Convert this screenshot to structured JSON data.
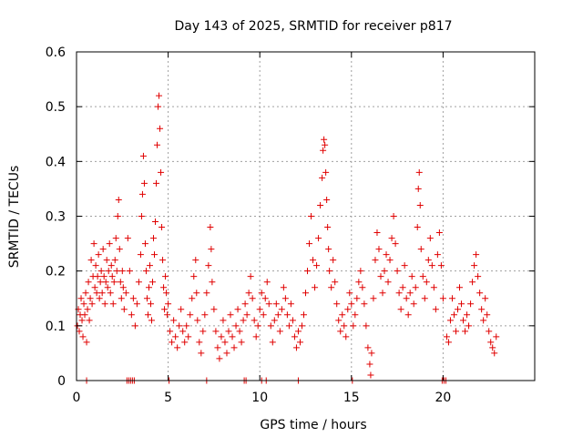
{
  "chart_data": {
    "type": "scatter",
    "title": "Day 143 of 2025, SRMTID for receiver p817",
    "xlabel": "GPS time / hours",
    "ylabel": "SRMTID / TECUs",
    "xlim": [
      0,
      25
    ],
    "ylim": [
      0,
      0.6
    ],
    "xticks": [
      0,
      5,
      10,
      15,
      20
    ],
    "xtick_labels": [
      "0",
      "5",
      "10",
      "15",
      "20"
    ],
    "yticks": [
      0,
      0.1,
      0.2,
      0.3,
      0.4,
      0.5,
      0.6
    ],
    "ytick_labels": [
      "0",
      "0.1",
      "0.2",
      "0.3",
      "0.4",
      "0.5",
      "0.6"
    ],
    "grid": true,
    "marker": "plus",
    "color": "#e00000",
    "series": [
      {
        "name": "SRMTID",
        "points": [
          [
            0.05,
            0.1
          ],
          [
            0.1,
            0.13
          ],
          [
            0.15,
            0.09
          ],
          [
            0.2,
            0.12
          ],
          [
            0.25,
            0.15
          ],
          [
            0.3,
            0.11
          ],
          [
            0.35,
            0.08
          ],
          [
            0.4,
            0.14
          ],
          [
            0.45,
            0.12
          ],
          [
            0.5,
            0.16
          ],
          [
            0.55,
            0.07
          ],
          [
            0.6,
            0.13
          ],
          [
            0.65,
            0.18
          ],
          [
            0.7,
            0.11
          ],
          [
            0.75,
            0.15
          ],
          [
            0.8,
            0.22
          ],
          [
            0.85,
            0.14
          ],
          [
            0.9,
            0.19
          ],
          [
            0.95,
            0.25
          ],
          [
            1.0,
            0.17
          ],
          [
            1.05,
            0.21
          ],
          [
            1.1,
            0.16
          ],
          [
            1.15,
            0.19
          ],
          [
            1.2,
            0.23
          ],
          [
            1.25,
            0.15
          ],
          [
            1.3,
            0.18
          ],
          [
            1.35,
            0.2
          ],
          [
            1.4,
            0.16
          ],
          [
            1.45,
            0.24
          ],
          [
            1.5,
            0.19
          ],
          [
            1.55,
            0.14
          ],
          [
            1.6,
            0.18
          ],
          [
            1.65,
            0.22
          ],
          [
            1.7,
            0.17
          ],
          [
            1.75,
            0.2
          ],
          [
            1.8,
            0.25
          ],
          [
            1.85,
            0.16
          ],
          [
            1.9,
            0.21
          ],
          [
            1.95,
            0.19
          ],
          [
            2.0,
            0.14
          ],
          [
            2.05,
            0.18
          ],
          [
            2.1,
            0.22
          ],
          [
            2.15,
            0.26
          ],
          [
            2.2,
            0.2
          ],
          [
            2.25,
            0.3
          ],
          [
            2.3,
            0.33
          ],
          [
            2.35,
            0.24
          ],
          [
            2.4,
            0.18
          ],
          [
            2.45,
            0.15
          ],
          [
            2.5,
            0.2
          ],
          [
            2.55,
            0.17
          ],
          [
            2.6,
            0.13
          ],
          [
            2.7,
            0.16
          ],
          [
            2.8,
            0.26
          ],
          [
            2.9,
            0.2
          ],
          [
            3.0,
            0.12
          ],
          [
            3.1,
            0.15
          ],
          [
            3.2,
            0.1
          ],
          [
            3.3,
            0.14
          ],
          [
            3.4,
            0.18
          ],
          [
            3.5,
            0.23
          ],
          [
            3.55,
            0.3
          ],
          [
            3.6,
            0.34
          ],
          [
            3.65,
            0.41
          ],
          [
            3.7,
            0.36
          ],
          [
            3.75,
            0.25
          ],
          [
            3.8,
            0.2
          ],
          [
            3.85,
            0.15
          ],
          [
            3.9,
            0.12
          ],
          [
            3.95,
            0.17
          ],
          [
            4.0,
            0.21
          ],
          [
            4.05,
            0.14
          ],
          [
            4.1,
            0.11
          ],
          [
            4.15,
            0.18
          ],
          [
            4.2,
            0.26
          ],
          [
            4.25,
            0.23
          ],
          [
            4.3,
            0.29
          ],
          [
            4.35,
            0.36
          ],
          [
            4.4,
            0.43
          ],
          [
            4.45,
            0.5
          ],
          [
            4.5,
            0.52
          ],
          [
            4.55,
            0.46
          ],
          [
            4.6,
            0.38
          ],
          [
            4.65,
            0.28
          ],
          [
            4.7,
            0.22
          ],
          [
            4.75,
            0.17
          ],
          [
            4.8,
            0.13
          ],
          [
            4.85,
            0.19
          ],
          [
            4.9,
            0.16
          ],
          [
            4.95,
            0.12
          ],
          [
            5.0,
            0.14
          ],
          [
            5.1,
            0.09
          ],
          [
            5.2,
            0.07
          ],
          [
            5.3,
            0.11
          ],
          [
            5.4,
            0.08
          ],
          [
            5.5,
            0.06
          ],
          [
            5.6,
            0.1
          ],
          [
            5.7,
            0.13
          ],
          [
            5.8,
            0.09
          ],
          [
            5.9,
            0.07
          ],
          [
            6.0,
            0.1
          ],
          [
            6.1,
            0.08
          ],
          [
            6.2,
            0.12
          ],
          [
            6.3,
            0.15
          ],
          [
            6.4,
            0.19
          ],
          [
            6.5,
            0.22
          ],
          [
            6.55,
            0.16
          ],
          [
            6.6,
            0.11
          ],
          [
            6.7,
            0.07
          ],
          [
            6.8,
            0.05
          ],
          [
            6.9,
            0.09
          ],
          [
            7.0,
            0.12
          ],
          [
            7.1,
            0.16
          ],
          [
            7.2,
            0.21
          ],
          [
            7.3,
            0.28
          ],
          [
            7.35,
            0.24
          ],
          [
            7.4,
            0.18
          ],
          [
            7.5,
            0.13
          ],
          [
            7.6,
            0.09
          ],
          [
            7.7,
            0.06
          ],
          [
            7.8,
            0.04
          ],
          [
            7.9,
            0.08
          ],
          [
            8.0,
            0.11
          ],
          [
            8.1,
            0.07
          ],
          [
            8.2,
            0.05
          ],
          [
            8.3,
            0.09
          ],
          [
            8.4,
            0.12
          ],
          [
            8.5,
            0.08
          ],
          [
            8.6,
            0.06
          ],
          [
            8.7,
            0.1
          ],
          [
            8.8,
            0.13
          ],
          [
            8.9,
            0.09
          ],
          [
            9.0,
            0.07
          ],
          [
            9.1,
            0.11
          ],
          [
            9.2,
            0.14
          ],
          [
            9.3,
            0.12
          ],
          [
            9.4,
            0.16
          ],
          [
            9.5,
            0.19
          ],
          [
            9.6,
            0.15
          ],
          [
            9.7,
            0.11
          ],
          [
            9.8,
            0.08
          ],
          [
            9.9,
            0.1
          ],
          [
            10.0,
            0.13
          ],
          [
            10.1,
            0.16
          ],
          [
            10.2,
            0.12
          ],
          [
            10.3,
            0.15
          ],
          [
            10.4,
            0.18
          ],
          [
            10.5,
            0.14
          ],
          [
            10.6,
            0.1
          ],
          [
            10.7,
            0.07
          ],
          [
            10.8,
            0.11
          ],
          [
            10.9,
            0.14
          ],
          [
            11.0,
            0.12
          ],
          [
            11.1,
            0.09
          ],
          [
            11.2,
            0.13
          ],
          [
            11.3,
            0.17
          ],
          [
            11.4,
            0.15
          ],
          [
            11.5,
            0.12
          ],
          [
            11.6,
            0.1
          ],
          [
            11.7,
            0.14
          ],
          [
            11.8,
            0.11
          ],
          [
            11.9,
            0.08
          ],
          [
            12.0,
            0.06
          ],
          [
            12.1,
            0.09
          ],
          [
            12.2,
            0.07
          ],
          [
            12.3,
            0.1
          ],
          [
            12.4,
            0.12
          ],
          [
            12.5,
            0.16
          ],
          [
            12.6,
            0.2
          ],
          [
            12.7,
            0.25
          ],
          [
            12.8,
            0.3
          ],
          [
            12.9,
            0.22
          ],
          [
            13.0,
            0.17
          ],
          [
            13.1,
            0.21
          ],
          [
            13.2,
            0.26
          ],
          [
            13.3,
            0.32
          ],
          [
            13.4,
            0.37
          ],
          [
            13.45,
            0.42
          ],
          [
            13.5,
            0.44
          ],
          [
            13.55,
            0.43
          ],
          [
            13.6,
            0.38
          ],
          [
            13.65,
            0.33
          ],
          [
            13.7,
            0.28
          ],
          [
            13.75,
            0.24
          ],
          [
            13.8,
            0.2
          ],
          [
            13.9,
            0.17
          ],
          [
            14.0,
            0.22
          ],
          [
            14.1,
            0.18
          ],
          [
            14.2,
            0.14
          ],
          [
            14.3,
            0.11
          ],
          [
            14.4,
            0.09
          ],
          [
            14.5,
            0.12
          ],
          [
            14.6,
            0.1
          ],
          [
            14.7,
            0.08
          ],
          [
            14.8,
            0.13
          ],
          [
            14.9,
            0.16
          ],
          [
            15.0,
            0.14
          ],
          [
            15.1,
            0.1
          ],
          [
            15.2,
            0.12
          ],
          [
            15.3,
            0.15
          ],
          [
            15.4,
            0.18
          ],
          [
            15.5,
            0.2
          ],
          [
            15.6,
            0.17
          ],
          [
            15.7,
            0.14
          ],
          [
            15.8,
            0.1
          ],
          [
            15.9,
            0.06
          ],
          [
            16.0,
            0.03
          ],
          [
            16.05,
            0.01
          ],
          [
            16.1,
            0.05
          ],
          [
            16.2,
            0.15
          ],
          [
            16.3,
            0.22
          ],
          [
            16.4,
            0.27
          ],
          [
            16.5,
            0.24
          ],
          [
            16.6,
            0.19
          ],
          [
            16.7,
            0.16
          ],
          [
            16.8,
            0.2
          ],
          [
            16.9,
            0.23
          ],
          [
            17.0,
            0.18
          ],
          [
            17.1,
            0.22
          ],
          [
            17.2,
            0.26
          ],
          [
            17.3,
            0.3
          ],
          [
            17.4,
            0.25
          ],
          [
            17.5,
            0.2
          ],
          [
            17.6,
            0.16
          ],
          [
            17.7,
            0.13
          ],
          [
            17.8,
            0.17
          ],
          [
            17.9,
            0.21
          ],
          [
            18.0,
            0.15
          ],
          [
            18.1,
            0.12
          ],
          [
            18.2,
            0.16
          ],
          [
            18.3,
            0.19
          ],
          [
            18.4,
            0.14
          ],
          [
            18.5,
            0.17
          ],
          [
            18.6,
            0.28
          ],
          [
            18.65,
            0.35
          ],
          [
            18.7,
            0.38
          ],
          [
            18.75,
            0.32
          ],
          [
            18.8,
            0.24
          ],
          [
            18.9,
            0.19
          ],
          [
            19.0,
            0.15
          ],
          [
            19.1,
            0.18
          ],
          [
            19.2,
            0.22
          ],
          [
            19.3,
            0.26
          ],
          [
            19.4,
            0.21
          ],
          [
            19.5,
            0.17
          ],
          [
            19.6,
            0.13
          ],
          [
            19.7,
            0.23
          ],
          [
            19.8,
            0.27
          ],
          [
            19.9,
            0.21
          ],
          [
            20.0,
            0.15
          ],
          [
            20.2,
            0.08
          ],
          [
            20.3,
            0.07
          ],
          [
            20.4,
            0.11
          ],
          [
            20.5,
            0.15
          ],
          [
            20.6,
            0.12
          ],
          [
            20.7,
            0.09
          ],
          [
            20.8,
            0.13
          ],
          [
            20.9,
            0.17
          ],
          [
            21.0,
            0.14
          ],
          [
            21.1,
            0.11
          ],
          [
            21.2,
            0.09
          ],
          [
            21.3,
            0.12
          ],
          [
            21.4,
            0.1
          ],
          [
            21.5,
            0.14
          ],
          [
            21.6,
            0.18
          ],
          [
            21.7,
            0.21
          ],
          [
            21.8,
            0.23
          ],
          [
            21.9,
            0.19
          ],
          [
            22.0,
            0.16
          ],
          [
            22.1,
            0.13
          ],
          [
            22.2,
            0.11
          ],
          [
            22.3,
            0.15
          ],
          [
            22.4,
            0.12
          ],
          [
            22.5,
            0.09
          ],
          [
            22.6,
            0.07
          ],
          [
            22.7,
            0.06
          ],
          [
            22.8,
            0.05
          ],
          [
            22.9,
            0.08
          ],
          [
            0.55,
            0.0
          ],
          [
            2.75,
            0.0
          ],
          [
            2.85,
            0.0
          ],
          [
            2.95,
            0.0
          ],
          [
            3.05,
            0.0
          ],
          [
            3.15,
            0.0
          ],
          [
            5.05,
            0.0
          ],
          [
            7.1,
            0.0
          ],
          [
            9.15,
            0.0
          ],
          [
            9.25,
            0.0
          ],
          [
            10.1,
            0.0
          ],
          [
            10.35,
            0.0
          ],
          [
            12.1,
            0.0
          ],
          [
            15.05,
            0.0
          ],
          [
            19.95,
            0.0
          ],
          [
            20.05,
            0.0
          ],
          [
            20.15,
            0.0
          ]
        ]
      }
    ]
  }
}
